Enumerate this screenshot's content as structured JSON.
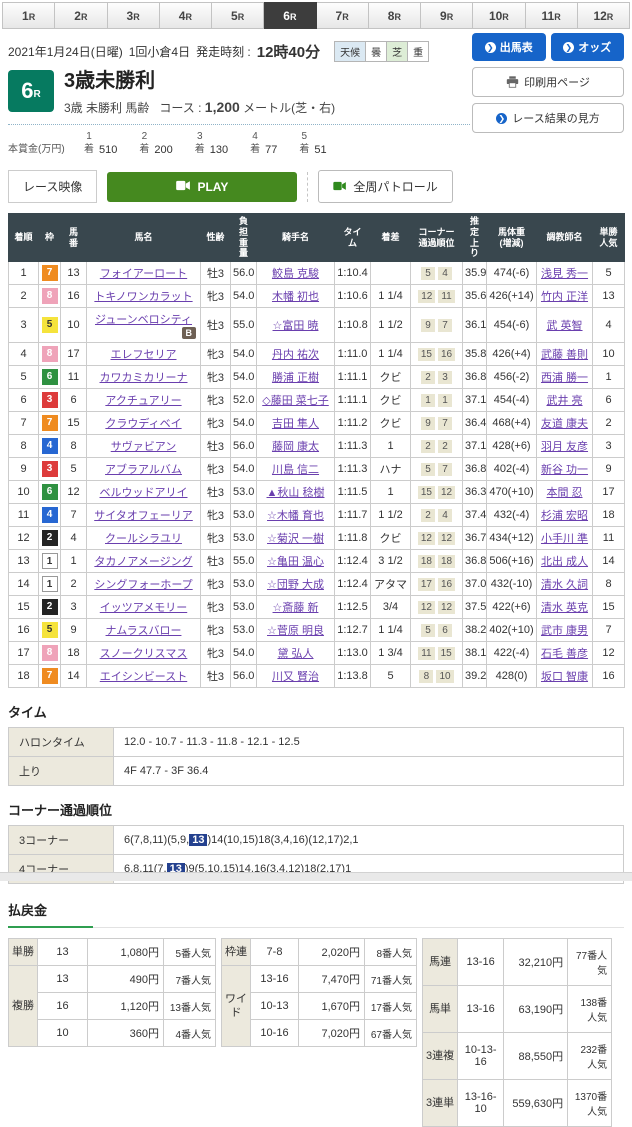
{
  "tabs": {
    "selected_index": 5,
    "items": [
      {
        "num": "1",
        "suffix": "R"
      },
      {
        "num": "2",
        "suffix": "R"
      },
      {
        "num": "3",
        "suffix": "R"
      },
      {
        "num": "4",
        "suffix": "R"
      },
      {
        "num": "5",
        "suffix": "R"
      },
      {
        "num": "6",
        "suffix": "R"
      },
      {
        "num": "7",
        "suffix": "R"
      },
      {
        "num": "8",
        "suffix": "R"
      },
      {
        "num": "9",
        "suffix": "R"
      },
      {
        "num": "10",
        "suffix": "R"
      },
      {
        "num": "11",
        "suffix": "R"
      },
      {
        "num": "12",
        "suffix": "R"
      }
    ]
  },
  "header": {
    "date": "2021年1月24日(日曜)",
    "meeting": "1回小倉4日",
    "post_time_label": "発走時刻 :",
    "post_time": "12時40分",
    "weather": {
      "label": "天候",
      "value": "曇",
      "surface_label": "芝",
      "surface_value": "重"
    },
    "buttons": {
      "entry_table": "出馬表",
      "odds": "オッズ",
      "print": "印刷用ページ",
      "guide": "レース結果の見方"
    }
  },
  "icons": {
    "chevron": "❯"
  },
  "race": {
    "number": "6",
    "suffix": "R",
    "title": "3歳未勝利",
    "conditions": "3歳 未勝利 馬齢",
    "course_label": "コース :",
    "distance": "1,200",
    "course_detail": "メートル(芝・右)"
  },
  "prize": {
    "label": "本賞金(万円)",
    "unit": "着",
    "items": [
      {
        "place": "1",
        "amount": "510"
      },
      {
        "place": "2",
        "amount": "200"
      },
      {
        "place": "3",
        "amount": "130"
      },
      {
        "place": "4",
        "amount": "77"
      },
      {
        "place": "5",
        "amount": "51"
      }
    ]
  },
  "video": {
    "label": "レース映像",
    "play": "PLAY",
    "patrol": "全周パトロール"
  },
  "results": {
    "columns": [
      "着順",
      "枠",
      "馬\n番",
      "馬名",
      "性齢",
      "負\n担\n重\n量",
      "騎手名",
      "タイ\nム",
      "着差",
      "コーナー\n通過順位",
      "推\n定\n上\nり",
      "馬体重\n(増減)",
      "調教師名",
      "単勝\n人気"
    ],
    "rows": [
      {
        "pos": "1",
        "frame": "7",
        "num": "13",
        "name": "フォイアーロート",
        "b": false,
        "sex": "牡3",
        "wt": "56.0",
        "jockey": "鮫島 克駿",
        "time": "1:10.4",
        "margin": "",
        "c3": "5",
        "c4": "4",
        "agari": "35.9",
        "body": "474(-6)",
        "trainer": "浅見 秀一",
        "pop": "5"
      },
      {
        "pos": "2",
        "frame": "8",
        "num": "16",
        "name": "トキノワンカラット",
        "b": false,
        "sex": "牝3",
        "wt": "54.0",
        "jockey": "木幡 初也",
        "time": "1:10.6",
        "margin": "1 1/4",
        "c3": "12",
        "c4": "11",
        "agari": "35.6",
        "body": "426(+14)",
        "trainer": "竹内 正洋",
        "pop": "13"
      },
      {
        "pos": "3",
        "frame": "5",
        "num": "10",
        "name": "ジューンベロシティ",
        "b": true,
        "sex": "牡3",
        "wt": "55.0",
        "jockey": "☆富田 暁",
        "time": "1:10.8",
        "margin": "1 1/2",
        "c3": "9",
        "c4": "7",
        "agari": "36.1",
        "body": "454(-6)",
        "trainer": "武 英智",
        "pop": "4"
      },
      {
        "pos": "4",
        "frame": "8",
        "num": "17",
        "name": "エレフセリア",
        "b": false,
        "sex": "牝3",
        "wt": "54.0",
        "jockey": "丹内 祐次",
        "time": "1:11.0",
        "margin": "1 1/4",
        "c3": "15",
        "c4": "16",
        "agari": "35.8",
        "body": "426(+4)",
        "trainer": "武藤 善則",
        "pop": "10"
      },
      {
        "pos": "5",
        "frame": "6",
        "num": "11",
        "name": "カワカミカリーナ",
        "b": false,
        "sex": "牝3",
        "wt": "54.0",
        "jockey": "勝浦 正樹",
        "time": "1:11.1",
        "margin": "クビ",
        "c3": "2",
        "c4": "3",
        "agari": "36.8",
        "body": "456(-2)",
        "trainer": "西浦 勝一",
        "pop": "1"
      },
      {
        "pos": "6",
        "frame": "3",
        "num": "6",
        "name": "アクチュアリー",
        "b": false,
        "sex": "牝3",
        "wt": "52.0",
        "jockey": "◇藤田 菜七子",
        "time": "1:11.1",
        "margin": "クビ",
        "c3": "1",
        "c4": "1",
        "agari": "37.1",
        "body": "454(-4)",
        "trainer": "武井 亮",
        "pop": "6"
      },
      {
        "pos": "7",
        "frame": "7",
        "num": "15",
        "name": "クラウディベイ",
        "b": false,
        "sex": "牝3",
        "wt": "54.0",
        "jockey": "吉田 隼人",
        "time": "1:11.2",
        "margin": "クビ",
        "c3": "9",
        "c4": "7",
        "agari": "36.4",
        "body": "468(+4)",
        "trainer": "友道 康夫",
        "pop": "2"
      },
      {
        "pos": "8",
        "frame": "4",
        "num": "8",
        "name": "サヴァビアン",
        "b": false,
        "sex": "牡3",
        "wt": "56.0",
        "jockey": "藤岡 康太",
        "time": "1:11.3",
        "margin": "1",
        "c3": "2",
        "c4": "2",
        "agari": "37.1",
        "body": "428(+6)",
        "trainer": "羽月 友彦",
        "pop": "3"
      },
      {
        "pos": "9",
        "frame": "3",
        "num": "5",
        "name": "アブラアルバム",
        "b": false,
        "sex": "牝3",
        "wt": "54.0",
        "jockey": "川島 信二",
        "time": "1:11.3",
        "margin": "ハナ",
        "c3": "5",
        "c4": "7",
        "agari": "36.8",
        "body": "402(-4)",
        "trainer": "新谷 功一",
        "pop": "9"
      },
      {
        "pos": "10",
        "frame": "6",
        "num": "12",
        "name": "ベルウッドアリイ",
        "b": false,
        "sex": "牡3",
        "wt": "53.0",
        "jockey": "▲秋山 稔樹",
        "time": "1:11.5",
        "margin": "1",
        "c3": "15",
        "c4": "12",
        "agari": "36.3",
        "body": "470(+10)",
        "trainer": "本間 忍",
        "pop": "17"
      },
      {
        "pos": "11",
        "frame": "4",
        "num": "7",
        "name": "サイタオフェーリア",
        "b": false,
        "sex": "牝3",
        "wt": "53.0",
        "jockey": "☆木幡 育也",
        "time": "1:11.7",
        "margin": "1 1/2",
        "c3": "2",
        "c4": "4",
        "agari": "37.4",
        "body": "432(-4)",
        "trainer": "杉浦 宏昭",
        "pop": "18"
      },
      {
        "pos": "12",
        "frame": "2",
        "num": "4",
        "name": "クールシラユリ",
        "b": false,
        "sex": "牝3",
        "wt": "53.0",
        "jockey": "☆菊沢 一樹",
        "time": "1:11.8",
        "margin": "クビ",
        "c3": "12",
        "c4": "12",
        "agari": "36.7",
        "body": "434(+12)",
        "trainer": "小手川 準",
        "pop": "11"
      },
      {
        "pos": "13",
        "frame": "1",
        "num": "1",
        "name": "タカノアメージング",
        "b": false,
        "sex": "牡3",
        "wt": "55.0",
        "jockey": "☆亀田 温心",
        "time": "1:12.4",
        "margin": "3 1/2",
        "c3": "18",
        "c4": "18",
        "agari": "36.8",
        "body": "506(+16)",
        "trainer": "北出 成人",
        "pop": "14"
      },
      {
        "pos": "14",
        "frame": "1",
        "num": "2",
        "name": "シングフォーホープ",
        "b": false,
        "sex": "牝3",
        "wt": "53.0",
        "jockey": "☆団野 大成",
        "time": "1:12.4",
        "margin": "アタマ",
        "c3": "17",
        "c4": "16",
        "agari": "37.0",
        "body": "432(-10)",
        "trainer": "清水 久詞",
        "pop": "8"
      },
      {
        "pos": "15",
        "frame": "2",
        "num": "3",
        "name": "イッツアメモリー",
        "b": false,
        "sex": "牝3",
        "wt": "53.0",
        "jockey": "☆斎藤 新",
        "time": "1:12.5",
        "margin": "3/4",
        "c3": "12",
        "c4": "12",
        "agari": "37.5",
        "body": "422(+6)",
        "trainer": "清水 英克",
        "pop": "15"
      },
      {
        "pos": "16",
        "frame": "5",
        "num": "9",
        "name": "ナムラスバロー",
        "b": false,
        "sex": "牝3",
        "wt": "53.0",
        "jockey": "☆菅原 明良",
        "time": "1:12.7",
        "margin": "1 1/4",
        "c3": "5",
        "c4": "6",
        "agari": "38.2",
        "body": "402(+10)",
        "trainer": "武市 康男",
        "pop": "7"
      },
      {
        "pos": "17",
        "frame": "8",
        "num": "18",
        "name": "スノークリスマス",
        "b": false,
        "sex": "牝3",
        "wt": "54.0",
        "jockey": "黛 弘人",
        "time": "1:13.0",
        "margin": "1 3/4",
        "c3": "11",
        "c4": "15",
        "agari": "38.1",
        "body": "422(-4)",
        "trainer": "石毛 善彦",
        "pop": "12"
      },
      {
        "pos": "18",
        "frame": "7",
        "num": "14",
        "name": "エイシンビースト",
        "b": false,
        "sex": "牡3",
        "wt": "56.0",
        "jockey": "川又 賢治",
        "time": "1:13.8",
        "margin": "5",
        "c3": "8",
        "c4": "10",
        "agari": "39.2",
        "body": "428(0)",
        "trainer": "坂口 智康",
        "pop": "16"
      }
    ]
  },
  "time_section": {
    "title": "タイム",
    "rows": [
      {
        "label": "ハロンタイム",
        "value": "12.0 - 10.7 - 11.3 - 11.8 - 12.1 - 12.5"
      },
      {
        "label": "上り",
        "value": "4F 47.7 - 3F 36.4"
      }
    ]
  },
  "corner_section": {
    "title": "コーナー通過順位",
    "rows": [
      {
        "label": "3コーナー",
        "pre": "6(7,8,11)(5,9,",
        "highlight": "13",
        "post": ")14(10,15)18(3,4,16)(12,17)2,1"
      },
      {
        "label": "4コーナー",
        "pre": "6,8,11(7,",
        "highlight": "13",
        "post": ")9(5,10,15)14,16(3,4,12)18(2,17)1"
      }
    ]
  },
  "payout": {
    "title": "払戻金",
    "tables": [
      {
        "groups": [
          {
            "label": "単勝",
            "rows": [
              {
                "num": "13",
                "amount": "1,080円",
                "pop": "5番人気"
              }
            ]
          },
          {
            "label": "複勝",
            "rows": [
              {
                "num": "13",
                "amount": "490円",
                "pop": "7番人気"
              },
              {
                "num": "16",
                "amount": "1,120円",
                "pop": "13番人気"
              },
              {
                "num": "10",
                "amount": "360円",
                "pop": "4番人気"
              }
            ]
          }
        ]
      },
      {
        "groups": [
          {
            "label": "枠連",
            "rows": [
              {
                "num": "7-8",
                "amount": "2,020円",
                "pop": "8番人気"
              }
            ]
          },
          {
            "label": "ワイ\nド",
            "rows": [
              {
                "num": "13-16",
                "amount": "7,470円",
                "pop": "71番人気"
              },
              {
                "num": "10-13",
                "amount": "1,670円",
                "pop": "17番人気"
              },
              {
                "num": "10-16",
                "amount": "7,020円",
                "pop": "67番人気"
              }
            ]
          }
        ]
      },
      {
        "groups": [
          {
            "label": "馬連",
            "rows": [
              {
                "num": "13-16",
                "amount": "32,210円",
                "pop": "77番人気"
              }
            ]
          },
          {
            "label": "馬単",
            "rows": [
              {
                "num": "13-16",
                "amount": "63,190円",
                "pop": "138番人気"
              }
            ]
          },
          {
            "label": "3連複",
            "rows": [
              {
                "num": "10-13-16",
                "amount": "88,550円",
                "pop": "232番人気"
              }
            ]
          },
          {
            "label": "3連単",
            "rows": [
              {
                "num": "13-16-10",
                "amount": "559,630円",
                "pop": "1370番人気"
              }
            ]
          }
        ]
      }
    ]
  },
  "colors": {
    "accent_green": "#067a60",
    "button_blue": "#1664c9",
    "play_green": "#45891f",
    "table_header": "#39474e",
    "highlight_blue": "#24418f",
    "label_beige": "#ece9dd",
    "frame_1": "#ffffff",
    "frame_2": "#242424",
    "frame_3": "#dd3b3b",
    "frame_4": "#2767d2",
    "frame_5": "#f5e33c",
    "frame_6": "#2f9141",
    "frame_7": "#ef8b20",
    "frame_8": "#efa3b9",
    "link_purple": "#6a3fae"
  }
}
